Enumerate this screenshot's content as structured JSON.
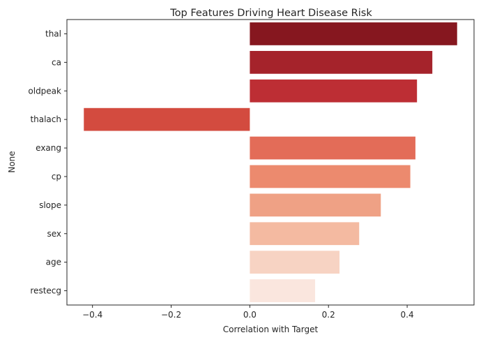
{
  "chart_data": {
    "type": "bar",
    "orientation": "horizontal",
    "title": "Top Features Driving Heart Disease Risk",
    "xlabel": "Correlation with Target",
    "ylabel": "None",
    "categories": [
      "thal",
      "ca",
      "oldpeak",
      "thalach",
      "exang",
      "cp",
      "slope",
      "sex",
      "age",
      "restecg"
    ],
    "values": [
      0.527,
      0.464,
      0.425,
      -0.422,
      0.421,
      0.408,
      0.333,
      0.278,
      0.228,
      0.166
    ],
    "colors": [
      "#86171f",
      "#a5232b",
      "#bd2e34",
      "#d34b3f",
      "#e36c58",
      "#ec8a6e",
      "#efa185",
      "#f4baa1",
      "#f7d3c3",
      "#fae6de"
    ],
    "xlim": [
      -0.465,
      0.57
    ],
    "xticks": [
      -0.4,
      -0.2,
      0.0,
      0.2,
      0.4
    ],
    "xtick_labels": [
      "−0.4",
      "−0.2",
      "0.0",
      "0.2",
      "0.4"
    ],
    "grid": false,
    "legend": "none"
  }
}
